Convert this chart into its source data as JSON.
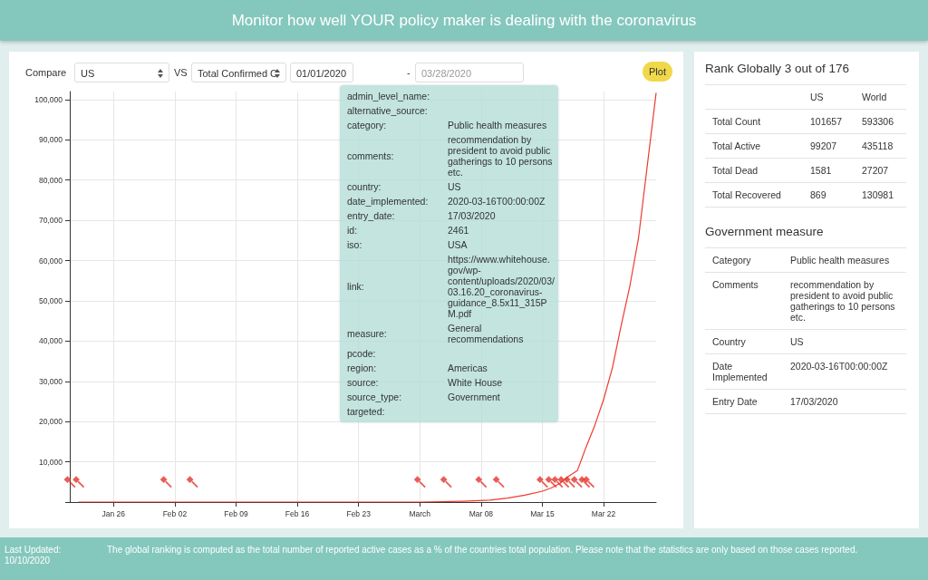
{
  "chart_data": [
    {
      "type": "line",
      "title": "Monitor how well YOUR policy maker is dealing with the coronavirus",
      "annotations": [
        "Compare",
        "US",
        "VS",
        "Total Confirmed C",
        "01/01/2020",
        "-",
        "03/28/2020",
        "Plot",
        "Last Updated: 10/10/2020",
        "The global ranking is computed as the total number of reported active cases as a % of the countries total population. Please note that the statistics are only based on those cases reported."
      ],
      "x": [
        "2020-01-22",
        "2020-03-01",
        "2020-03-06",
        "2020-03-09",
        "2020-03-11",
        "2020-03-13",
        "2020-03-15",
        "2020-03-16",
        "2020-03-17",
        "2020-03-18",
        "2020-03-19",
        "2020-03-20",
        "2020-03-21",
        "2020-03-22",
        "2020-03-23",
        "2020-03-24",
        "2020-03-25",
        "2020-03-26",
        "2020-03-27",
        "2020-03-28"
      ],
      "series": [
        {
          "type": "line",
          "color": "#ee3b2f",
          "values": [
            0,
            0,
            200,
            500,
            1000,
            1700,
            2700,
            3500,
            4600,
            6400,
            7800,
            13700,
            19100,
            25500,
            33300,
            43800,
            53700,
            65800,
            83800,
            101700
          ]
        },
        {
          "type": "scatter",
          "color": "#e5332a",
          "x": [
            "2020-01-21",
            "2020-01-22",
            "2020-02-01",
            "2020-02-04",
            "2020-03-01",
            "2020-03-04",
            "2020-03-08",
            "2020-03-10",
            "2020-03-15",
            "2020-03-16",
            "2020-03-16T17:00",
            "2020-03-17T10:00",
            "2020-03-18T02:00",
            "2020-03-18T22:00",
            "2020-03-19T19:00",
            "2020-03-20T07:00"
          ],
          "values": [
            5000,
            5000,
            5000,
            5000,
            5000,
            5000,
            5000,
            5000,
            5000,
            5000,
            5000,
            5000,
            5000,
            5000,
            5000,
            5000
          ]
        }
      ],
      "xlim": [
        "2020-01-21",
        "2020-03-28"
      ],
      "xticks": [
        {
          "value": "2020-01-26",
          "label": "Jan 26"
        },
        {
          "value": "2020-02-02",
          "label": "Feb 02"
        },
        {
          "value": "2020-02-09",
          "label": "Feb 09"
        },
        {
          "value": "2020-02-16",
          "label": "Feb 16"
        },
        {
          "value": "2020-02-23",
          "label": "Feb 23"
        },
        {
          "value": "2020-03-01",
          "label": "March"
        },
        {
          "value": "2020-03-08",
          "label": "Mar 08"
        },
        {
          "value": "2020-03-15",
          "label": "Mar 15"
        },
        {
          "value": "2020-03-22",
          "label": "Mar 22"
        }
      ],
      "ylim": [
        0,
        102000
      ],
      "yticks": [
        {
          "value": 0,
          "label": null
        },
        {
          "value": 10000,
          "label": "10,000"
        },
        {
          "value": 20000,
          "label": "20,000"
        },
        {
          "value": 30000,
          "label": "30,000"
        },
        {
          "value": 40000,
          "label": "40,000"
        },
        {
          "value": 50000,
          "label": "50,000"
        },
        {
          "value": 60000,
          "label": "60,000"
        },
        {
          "value": 70000,
          "label": "70,000"
        },
        {
          "value": 80000,
          "label": "80,000"
        },
        {
          "value": 90000,
          "label": "90,000"
        },
        {
          "value": 100000,
          "label": "100,000"
        }
      ],
      "grid": true
    },
    {
      "type": "other",
      "y_categories": [
        "admin_level_name:",
        "alternative_source:",
        "category:",
        "comments:",
        "country:",
        "date_implemented:",
        "entry_date:",
        "id:",
        "iso:",
        "link:",
        "measure:",
        "pcode:",
        "region:",
        "source:",
        "source_type:",
        "targeted:"
      ],
      "cell_labels": [
        [
          null
        ],
        [
          null
        ],
        [
          "Public health measures"
        ],
        [
          "recommendation by president to avoid public gatherings to 10 persons etc."
        ],
        [
          "US"
        ],
        [
          "2020-03-16T00:00:00Z"
        ],
        [
          "17/03/2020"
        ],
        [
          "2461"
        ],
        [
          "USA"
        ],
        [
          "https://www.whitehouse.gov/wp-content/uploads/2020/03/03.16.20_coronavirus-guidance_8.5x11_315PM.pdf"
        ],
        [
          "General recommendations"
        ],
        [
          null
        ],
        [
          "Americas"
        ],
        [
          "White House"
        ],
        [
          "Government"
        ],
        [
          null
        ]
      ]
    },
    {
      "type": "other",
      "title": "Rank Globally 3 out of 176",
      "categories": [
        "US",
        "World"
      ],
      "y_categories": [
        "Total Count",
        "Total Active",
        "Total Dead",
        "Total Recovered"
      ],
      "cell_labels": [
        [
          "101657",
          "593306"
        ],
        [
          "99207",
          "435118"
        ],
        [
          "1581",
          "27207"
        ],
        [
          "869",
          "130981"
        ]
      ]
    },
    {
      "type": "other",
      "title": "Government measure",
      "y_categories": [
        "Category",
        "Comments",
        "Country",
        "Date Implemented",
        "Entry Date"
      ],
      "cell_labels": [
        [
          "Public health measures"
        ],
        [
          "recommendation by president to avoid public gatherings to 10 persons etc."
        ],
        [
          "US"
        ],
        [
          "2020-03-16T00:00:00Z"
        ],
        [
          "17/03/2020"
        ]
      ]
    }
  ]
}
